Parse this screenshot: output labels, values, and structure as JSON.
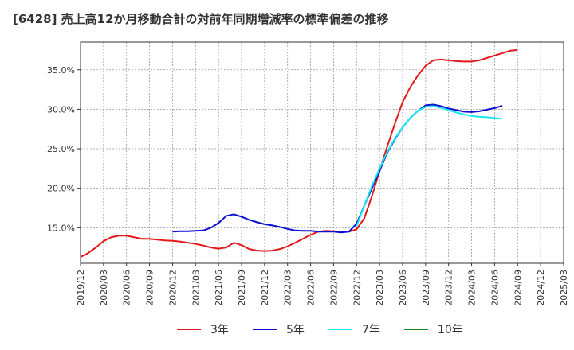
{
  "chart_data": {
    "type": "line",
    "title": "[6428]  売上高12か月移動合計の対前年同期増減率の標準偏差の推移",
    "xlabel": "",
    "ylabel": "",
    "ylim": [
      10.5,
      38.5
    ],
    "y_ticks": [
      15,
      20,
      25,
      30,
      35
    ],
    "y_tick_labels": [
      "15.0%",
      "20.0%",
      "25.0%",
      "30.0%",
      "35.0%"
    ],
    "x_start": "2019/12",
    "x_end": "2025/03",
    "x_tick_labels": [
      "2019/12",
      "2020/03",
      "2020/06",
      "2020/09",
      "2020/12",
      "2021/03",
      "2021/06",
      "2021/09",
      "2021/12",
      "2022/03",
      "2022/06",
      "2022/09",
      "2022/12",
      "2023/03",
      "2023/06",
      "2023/09",
      "2023/12",
      "2024/03",
      "2024/06",
      "2024/09",
      "2024/12",
      "2025/03"
    ],
    "grid": true,
    "legend_position": "bottom",
    "series": [
      {
        "name": "3年",
        "color": "#e31a1c",
        "start": "2019/12",
        "values": [
          11.3,
          11.8,
          12.5,
          13.3,
          13.8,
          14.0,
          14.0,
          13.8,
          13.6,
          13.6,
          13.5,
          13.4,
          13.35,
          13.25,
          13.1,
          12.95,
          12.75,
          12.5,
          12.35,
          12.5,
          13.1,
          12.8,
          12.3,
          12.1,
          12.05,
          12.1,
          12.3,
          12.65,
          13.1,
          13.6,
          14.1,
          14.5,
          14.6,
          14.55,
          14.5,
          14.5,
          14.8,
          16.2,
          19.0,
          22.2,
          25.3,
          28.2,
          30.9,
          32.8,
          34.3,
          35.5,
          36.2,
          36.3,
          36.2,
          36.1,
          36.05,
          36.05,
          36.2,
          36.5,
          36.8,
          37.1,
          37.4,
          37.5
        ]
      },
      {
        "name": "5年",
        "color": "#0b0fcf",
        "start": "2020/12",
        "values": [
          14.5,
          14.55,
          14.55,
          14.6,
          14.65,
          15.0,
          15.6,
          16.5,
          16.7,
          16.4,
          16.0,
          15.7,
          15.45,
          15.3,
          15.1,
          14.85,
          14.65,
          14.6,
          14.6,
          14.5,
          14.5,
          14.5,
          14.4,
          14.5,
          15.5,
          17.8,
          20.0,
          22.2,
          24.5,
          26.2,
          27.7,
          28.9,
          29.8,
          30.5,
          30.6,
          30.4,
          30.1,
          29.9,
          29.7,
          29.65,
          29.75,
          29.95,
          30.15,
          30.45
        ]
      },
      {
        "name": "7年",
        "color": "#19e6f2",
        "start": "2022/12",
        "values": [
          15.2,
          17.8,
          20.3,
          22.5,
          24.6,
          26.3,
          27.7,
          28.9,
          29.8,
          30.3,
          30.4,
          30.2,
          29.9,
          29.6,
          29.35,
          29.15,
          29.05,
          29.0,
          28.9,
          28.8
        ]
      },
      {
        "name": "10年",
        "color": "#1a8c1a",
        "start": "2019/12",
        "values": []
      }
    ]
  }
}
